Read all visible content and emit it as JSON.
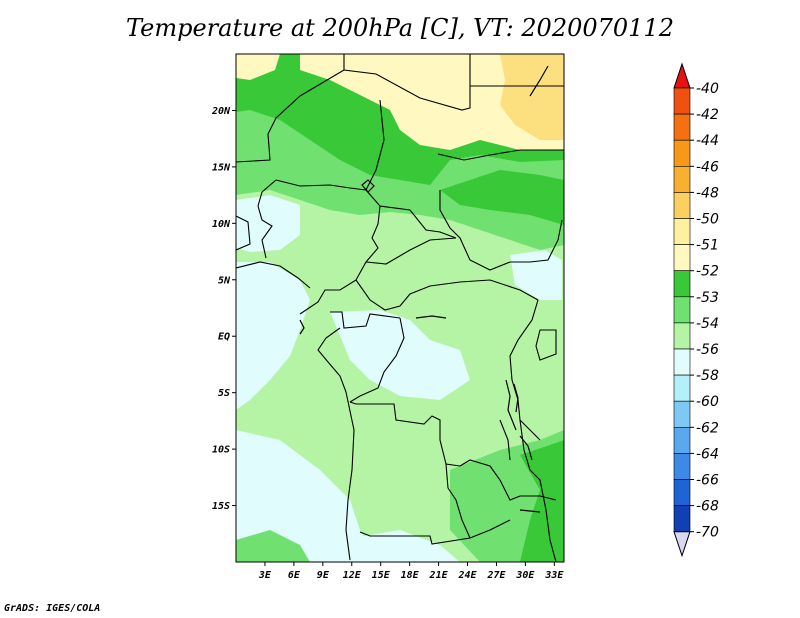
{
  "title": "Temperature at 200hPa [C], VT: 2020070112",
  "credit": "GrADS: IGES/COLA",
  "map": {
    "lon_range": [
      0,
      34
    ],
    "lat_range": [
      -20,
      25
    ],
    "lat_ticks": [
      {
        "value": 20,
        "label": "20N"
      },
      {
        "value": 15,
        "label": "15N"
      },
      {
        "value": 10,
        "label": "10N"
      },
      {
        "value": 5,
        "label": "5N"
      },
      {
        "value": 0,
        "label": "EQ"
      },
      {
        "value": -5,
        "label": "5S"
      },
      {
        "value": -10,
        "label": "10S"
      },
      {
        "value": -15,
        "label": "15S"
      }
    ],
    "lon_ticks": [
      {
        "value": 3,
        "label": "3E"
      },
      {
        "value": 6,
        "label": "6E"
      },
      {
        "value": 9,
        "label": "9E"
      },
      {
        "value": 12,
        "label": "12E"
      },
      {
        "value": 15,
        "label": "15E"
      },
      {
        "value": 18,
        "label": "18E"
      },
      {
        "value": 21,
        "label": "21E"
      },
      {
        "value": 24,
        "label": "24E"
      },
      {
        "value": 27,
        "label": "27E"
      },
      {
        "value": 30,
        "label": "30E"
      },
      {
        "value": 33,
        "label": "33E"
      }
    ]
  },
  "colorbar": {
    "top_color": "#e81010",
    "bottom_color": "#d8d8f0",
    "levels": [
      {
        "label": "-40",
        "color": "#f05010"
      },
      {
        "label": "-42",
        "color": "#f47010"
      },
      {
        "label": "-44",
        "color": "#f89818"
      },
      {
        "label": "-46",
        "color": "#f8b030"
      },
      {
        "label": "-48",
        "color": "#fcd060"
      },
      {
        "label": "-50",
        "color": "#fff0a0"
      },
      {
        "label": "-51",
        "color": "#fff8c0"
      },
      {
        "label": "-52",
        "color": "#38c838"
      },
      {
        "label": "-53",
        "color": "#70e070"
      },
      {
        "label": "-54",
        "color": "#b4f4a4"
      },
      {
        "label": "-56",
        "color": "#e0fcfc"
      },
      {
        "label": "-58",
        "color": "#b4f0fa"
      },
      {
        "label": "-60",
        "color": "#80c8f4"
      },
      {
        "label": "-62",
        "color": "#5aa8ee"
      },
      {
        "label": "-64",
        "color": "#3c8ae6"
      },
      {
        "label": "-66",
        "color": "#1e64d6"
      },
      {
        "label": "-68",
        "color": "#1040b4"
      },
      {
        "label": "-70",
        "color": "#0a1478"
      }
    ]
  }
}
